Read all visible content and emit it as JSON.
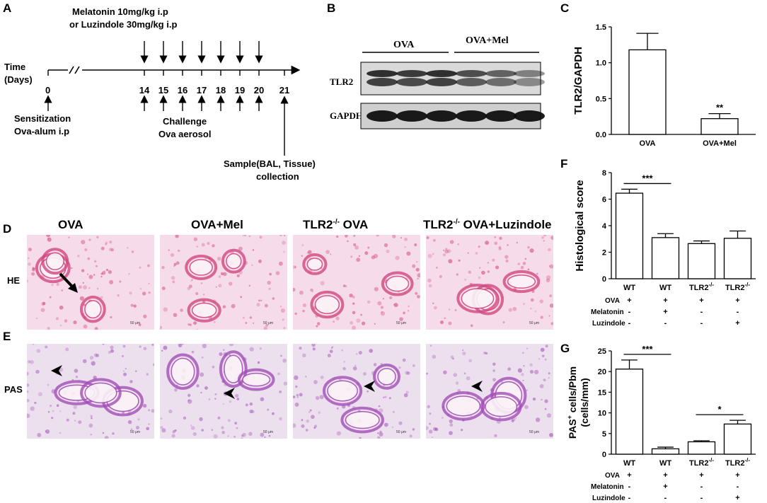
{
  "panel_labels": {
    "A": "A",
    "B": "B",
    "C": "C",
    "D": "D",
    "E": "E",
    "F": "F",
    "G": "G"
  },
  "panel_a": {
    "treatment_line1": "Melatonin 10mg/kg i.p",
    "treatment_line2": "or Luzindole 30mg/kg i.p",
    "time_label_line1": "Time",
    "time_label_line2": "(Days)",
    "day_zero": "0",
    "days": [
      "14",
      "15",
      "16",
      "17",
      "18",
      "19",
      "20",
      "21"
    ],
    "sensitization_line1": "Sensitization",
    "sensitization_line2": "Ova-alum i.p",
    "challenge_line1": "Challenge",
    "challenge_line2": "Ova aerosol",
    "sample_line1": "Sample(BAL, Tissue)",
    "sample_line2": "collection"
  },
  "panel_b": {
    "group1": "OVA",
    "group2": "OVA+Mel",
    "band1": "TLR2",
    "band2": "GAPDH"
  },
  "micrographs": {
    "columns": [
      "OVA",
      "OVA+Mel",
      "TLR2-/- OVA",
      "TLR2-/- OVA+Luzindole"
    ],
    "col3_prefix": "TLR2",
    "col3_sup": "-/-",
    "col3_suffix": " OVA",
    "col4_prefix": "TLR2",
    "col4_sup": "-/-",
    "col4_suffix": " OVA+Luzindole",
    "row_he": "HE",
    "row_pas": "PAS",
    "scale_bar": "50 μm",
    "colors": {
      "he_bg": "#f6dcea",
      "he_tissue": "#d1477f",
      "pas_bg": "#ece0ee",
      "pas_tissue": "#a24fb6"
    }
  },
  "treatment_rows": {
    "ova": "OVA",
    "melatonin": "Melatonin",
    "luzindole": "Luzindole",
    "f_ova": [
      "+",
      "+",
      "+",
      "+"
    ],
    "f_mel": [
      "-",
      "+",
      "-",
      "-"
    ],
    "f_luz": [
      "-",
      "-",
      "-",
      "+"
    ],
    "g_ova": [
      "+",
      "+",
      "+",
      "+"
    ],
    "g_mel": [
      "-",
      "+",
      "-",
      "-"
    ],
    "g_luz": [
      "-",
      "-",
      "-",
      "+"
    ]
  },
  "chart_data": [
    {
      "panel": "C",
      "type": "bar",
      "categories": [
        "OVA",
        "OVA+Mel"
      ],
      "values": [
        1.18,
        0.22
      ],
      "errors": [
        0.23,
        0.07
      ],
      "ylabel": "TLR2/GAPDH",
      "ylim": [
        0,
        1.5
      ],
      "yticks": [
        "0.0",
        "0.5",
        "1.0",
        "1.5"
      ],
      "annotations": [
        {
          "text": "**",
          "category": "OVA+Mel"
        }
      ]
    },
    {
      "panel": "F",
      "type": "bar",
      "categories": [
        "WT",
        "WT",
        "TLR2",
        "TLR2"
      ],
      "superscripts": [
        "",
        "",
        "-/-",
        "-/-"
      ],
      "values": [
        6.45,
        3.1,
        2.65,
        3.05
      ],
      "errors": [
        0.3,
        0.3,
        0.2,
        0.55
      ],
      "ylabel": "Histological score",
      "ylim": [
        0,
        8
      ],
      "yticks": [
        "0",
        "2",
        "4",
        "6",
        "8"
      ],
      "annotations": [
        {
          "text": "***",
          "from": 0,
          "to": 1
        }
      ]
    },
    {
      "panel": "G",
      "type": "bar",
      "categories": [
        "WT",
        "WT",
        "TLR2",
        "TLR2"
      ],
      "superscripts": [
        "",
        "",
        "-/-",
        "-/-"
      ],
      "values": [
        20.6,
        1.3,
        3.0,
        7.3
      ],
      "errors": [
        2.2,
        0.4,
        0.25,
        0.9
      ],
      "ylabel_line1_main": "PAS",
      "ylabel_line1_sup": "+",
      "ylabel_line1_rest": " cells/Pbm",
      "ylabel_line2": "(cells/mm)",
      "ylim": [
        0,
        25
      ],
      "yticks": [
        "0",
        "5",
        "10",
        "15",
        "20",
        "25"
      ],
      "annotations": [
        {
          "text": "***",
          "from": 0,
          "to": 1
        },
        {
          "text": "*",
          "from": 2,
          "to": 3
        }
      ]
    }
  ]
}
